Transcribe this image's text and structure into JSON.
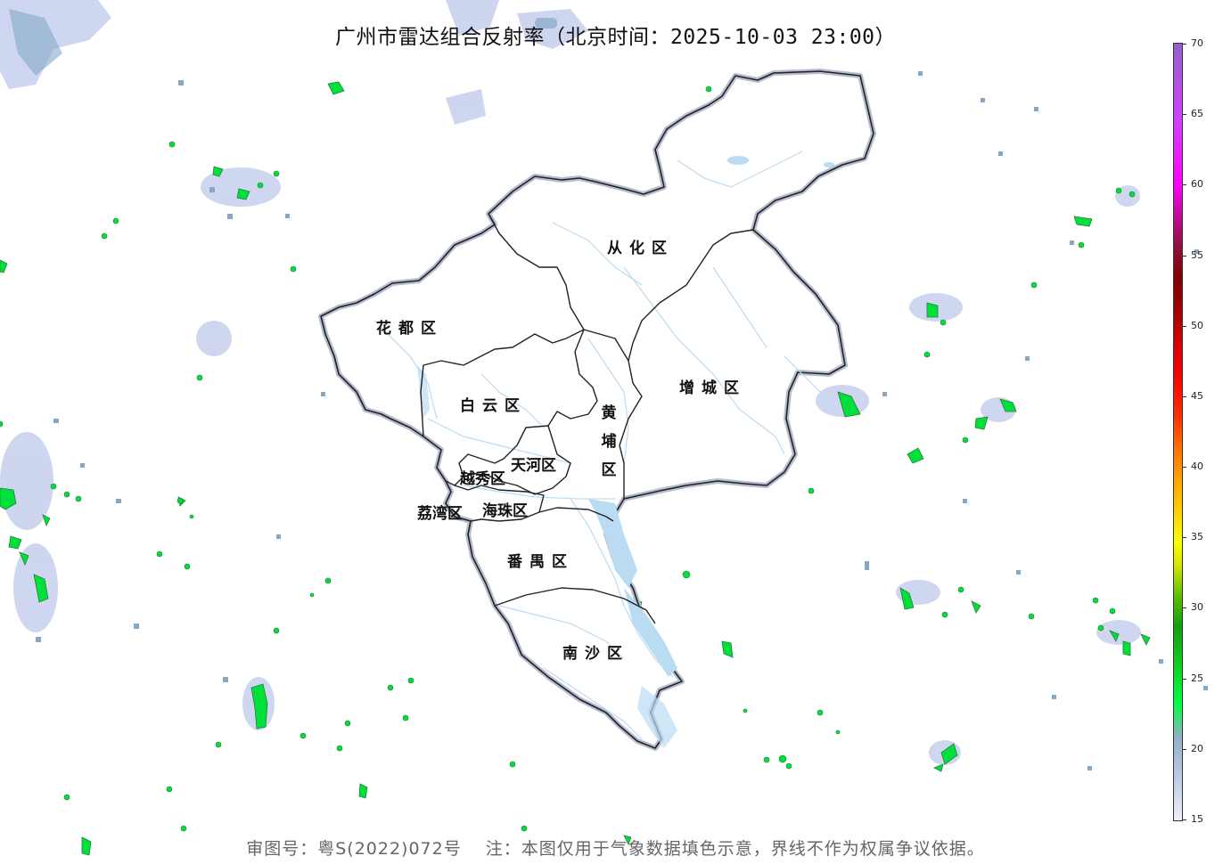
{
  "title": "广州市雷达组合反射率（北京时间：2025-10-03 23:00）",
  "footer": "审图号：粤S(2022)072号　 注：本图仅用于气象数据填色示意，界线不作为权属争议依据。",
  "districts": {
    "conghua": "从化区",
    "huadu": "花都区",
    "zengcheng": "增城区",
    "baiyun": "白云区",
    "huangpu_1": "黄",
    "huangpu_2": "埔",
    "huangpu_3": "区",
    "tianhe": "天河区",
    "yuexiu": "越秀区",
    "liwan": "荔湾区",
    "haizhu": "海珠区",
    "panyu": "番禺区",
    "nansha": "南沙区"
  },
  "colorbar": {
    "ticks": [
      "70",
      "65",
      "60",
      "55",
      "50",
      "45",
      "40",
      "35",
      "30",
      "25",
      "20",
      "15"
    ],
    "unit_range": [
      15,
      70
    ]
  },
  "colors": {
    "echo_weak": "#c8d2ec",
    "echo_light": "#7fa6c6",
    "echo_green": "#00e03a",
    "boundary": "#222222",
    "river": "#b9dcf2"
  }
}
